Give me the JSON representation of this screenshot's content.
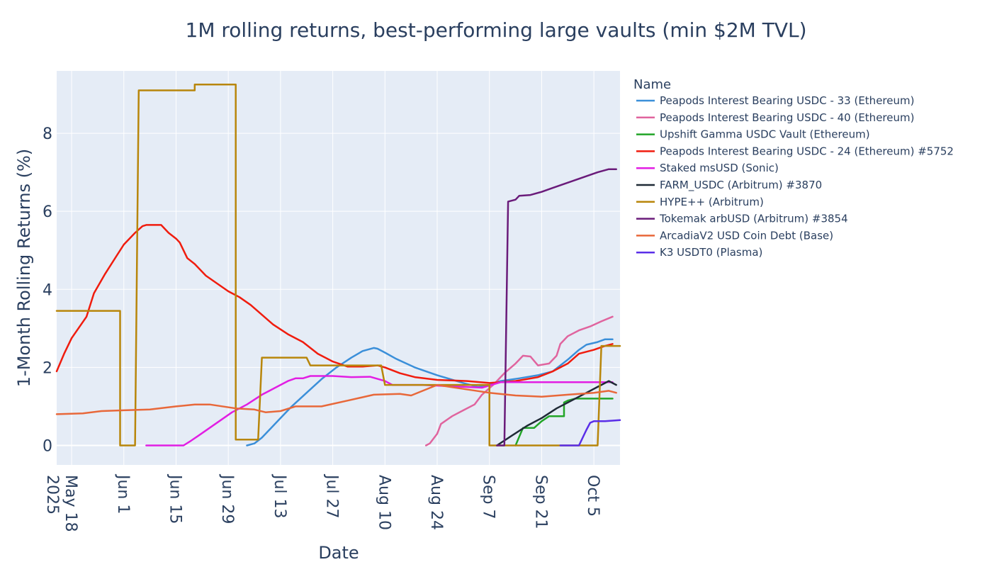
{
  "chart_data": {
    "type": "line",
    "title": "1M rolling returns, best-performing large vaults (min $2M TVL)",
    "xlabel": "Date",
    "ylabel": "1-Month Rolling Returns (%)",
    "x_range": [
      "2025-05-14",
      "2025-10-12"
    ],
    "ylim": [
      -0.5,
      9.6
    ],
    "y_ticks": [
      0,
      2,
      4,
      6,
      8
    ],
    "x_ticks": [
      {
        "date": "2025-05-18",
        "label": "May 18",
        "sublabel": "2025"
      },
      {
        "date": "2025-06-01",
        "label": "Jun 1",
        "sublabel": ""
      },
      {
        "date": "2025-06-15",
        "label": "Jun 15",
        "sublabel": ""
      },
      {
        "date": "2025-06-29",
        "label": "Jun 29",
        "sublabel": ""
      },
      {
        "date": "2025-07-13",
        "label": "Jul 13",
        "sublabel": ""
      },
      {
        "date": "2025-07-27",
        "label": "Jul 27",
        "sublabel": ""
      },
      {
        "date": "2025-08-10",
        "label": "Aug 10",
        "sublabel": ""
      },
      {
        "date": "2025-08-24",
        "label": "Aug 24",
        "sublabel": ""
      },
      {
        "date": "2025-09-07",
        "label": "Sep 7",
        "sublabel": ""
      },
      {
        "date": "2025-09-21",
        "label": "Sep 21",
        "sublabel": ""
      },
      {
        "date": "2025-10-05",
        "label": "Oct 5",
        "sublabel": ""
      }
    ],
    "grid": true,
    "legend_title": "Name",
    "legend_position": "right",
    "colors": {
      "plot_bg": "#e5ecf6",
      "grid": "#ffffff",
      "text": "#2a3f5f"
    },
    "series": [
      {
        "name": "Peapods Interest Bearing USDC - 33 (Ethereum)",
        "color": "#3b8fd9",
        "points": [
          [
            "2025-07-04",
            0.0
          ],
          [
            "2025-07-06",
            0.05
          ],
          [
            "2025-07-08",
            0.2
          ],
          [
            "2025-07-10",
            0.4
          ],
          [
            "2025-07-13",
            0.7
          ],
          [
            "2025-07-16",
            1.0
          ],
          [
            "2025-07-20",
            1.35
          ],
          [
            "2025-07-24",
            1.7
          ],
          [
            "2025-07-28",
            2.0
          ],
          [
            "2025-08-01",
            2.25
          ],
          [
            "2025-08-04",
            2.42
          ],
          [
            "2025-08-07",
            2.5
          ],
          [
            "2025-08-08",
            2.48
          ],
          [
            "2025-08-10",
            2.38
          ],
          [
            "2025-08-13",
            2.22
          ],
          [
            "2025-08-18",
            2.0
          ],
          [
            "2025-08-24",
            1.8
          ],
          [
            "2025-08-31",
            1.6
          ],
          [
            "2025-09-04",
            1.5
          ],
          [
            "2025-09-07",
            1.55
          ],
          [
            "2025-09-10",
            1.65
          ],
          [
            "2025-09-15",
            1.72
          ],
          [
            "2025-09-20",
            1.8
          ],
          [
            "2025-09-24",
            1.9
          ],
          [
            "2025-09-28",
            2.2
          ],
          [
            "2025-10-01",
            2.45
          ],
          [
            "2025-10-03",
            2.58
          ],
          [
            "2025-10-06",
            2.65
          ],
          [
            "2025-10-08",
            2.72
          ],
          [
            "2025-10-10",
            2.72
          ]
        ]
      },
      {
        "name": "Peapods Interest Bearing USDC - 40 (Ethereum)",
        "color": "#e0649e",
        "points": [
          [
            "2025-08-21",
            0.0
          ],
          [
            "2025-08-22",
            0.05
          ],
          [
            "2025-08-24",
            0.3
          ],
          [
            "2025-08-25",
            0.55
          ],
          [
            "2025-08-28",
            0.75
          ],
          [
            "2025-08-31",
            0.9
          ],
          [
            "2025-09-03",
            1.05
          ],
          [
            "2025-09-05",
            1.3
          ],
          [
            "2025-09-08",
            1.55
          ],
          [
            "2025-09-11",
            1.85
          ],
          [
            "2025-09-14",
            2.1
          ],
          [
            "2025-09-16",
            2.3
          ],
          [
            "2025-09-18",
            2.28
          ],
          [
            "2025-09-20",
            2.05
          ],
          [
            "2025-09-23",
            2.1
          ],
          [
            "2025-09-25",
            2.3
          ],
          [
            "2025-09-26",
            2.6
          ],
          [
            "2025-09-28",
            2.8
          ],
          [
            "2025-10-01",
            2.95
          ],
          [
            "2025-10-04",
            3.05
          ],
          [
            "2025-10-07",
            3.18
          ],
          [
            "2025-10-10",
            3.3
          ]
        ]
      },
      {
        "name": "Upshift Gamma USDC Vault (Ethereum)",
        "color": "#22a528",
        "points": [
          [
            "2025-09-14",
            0.0
          ],
          [
            "2025-09-16",
            0.45
          ],
          [
            "2025-09-19",
            0.45
          ],
          [
            "2025-09-21",
            0.62
          ],
          [
            "2025-09-23",
            0.75
          ],
          [
            "2025-09-27",
            0.75
          ],
          [
            "2025-09-27",
            1.1
          ],
          [
            "2025-09-28",
            1.15
          ],
          [
            "2025-09-30",
            1.2
          ],
          [
            "2025-10-10",
            1.2
          ]
        ]
      },
      {
        "name": "Peapods Interest Bearing USDC - 24 (Ethereum) #5752",
        "color": "#f01c0e",
        "points": [
          [
            "2025-05-14",
            1.9
          ],
          [
            "2025-05-16",
            2.35
          ],
          [
            "2025-05-18",
            2.75
          ],
          [
            "2025-05-22",
            3.3
          ],
          [
            "2025-05-24",
            3.9
          ],
          [
            "2025-05-27",
            4.4
          ],
          [
            "2025-05-30",
            4.85
          ],
          [
            "2025-06-01",
            5.15
          ],
          [
            "2025-06-04",
            5.45
          ],
          [
            "2025-06-06",
            5.62
          ],
          [
            "2025-06-07",
            5.65
          ],
          [
            "2025-06-11",
            5.65
          ],
          [
            "2025-06-13",
            5.45
          ],
          [
            "2025-06-15",
            5.3
          ],
          [
            "2025-06-16",
            5.2
          ],
          [
            "2025-06-18",
            4.8
          ],
          [
            "2025-06-20",
            4.65
          ],
          [
            "2025-06-23",
            4.35
          ],
          [
            "2025-06-26",
            4.15
          ],
          [
            "2025-06-29",
            3.95
          ],
          [
            "2025-07-02",
            3.8
          ],
          [
            "2025-07-05",
            3.6
          ],
          [
            "2025-07-08",
            3.35
          ],
          [
            "2025-07-11",
            3.1
          ],
          [
            "2025-07-15",
            2.85
          ],
          [
            "2025-07-19",
            2.65
          ],
          [
            "2025-07-23",
            2.35
          ],
          [
            "2025-07-27",
            2.15
          ],
          [
            "2025-07-31",
            2.02
          ],
          [
            "2025-08-04",
            2.02
          ],
          [
            "2025-08-08",
            2.05
          ],
          [
            "2025-08-10",
            2.0
          ],
          [
            "2025-08-14",
            1.85
          ],
          [
            "2025-08-18",
            1.75
          ],
          [
            "2025-08-24",
            1.68
          ],
          [
            "2025-09-01",
            1.65
          ],
          [
            "2025-09-07",
            1.6
          ],
          [
            "2025-09-14",
            1.65
          ],
          [
            "2025-09-20",
            1.75
          ],
          [
            "2025-09-24",
            1.9
          ],
          [
            "2025-09-28",
            2.1
          ],
          [
            "2025-10-01",
            2.35
          ],
          [
            "2025-10-05",
            2.45
          ],
          [
            "2025-10-08",
            2.55
          ],
          [
            "2025-10-10",
            2.6
          ]
        ]
      },
      {
        "name": "Staked msUSD (Sonic)",
        "color": "#e21ee3",
        "points": [
          [
            "2025-06-07",
            0.0
          ],
          [
            "2025-06-17",
            0.0
          ],
          [
            "2025-06-19",
            0.12
          ],
          [
            "2025-06-21",
            0.25
          ],
          [
            "2025-06-24",
            0.45
          ],
          [
            "2025-06-27",
            0.65
          ],
          [
            "2025-06-30",
            0.85
          ],
          [
            "2025-07-04",
            1.05
          ],
          [
            "2025-07-08",
            1.3
          ],
          [
            "2025-07-12",
            1.5
          ],
          [
            "2025-07-15",
            1.65
          ],
          [
            "2025-07-17",
            1.72
          ],
          [
            "2025-07-19",
            1.72
          ],
          [
            "2025-07-21",
            1.78
          ],
          [
            "2025-07-27",
            1.78
          ],
          [
            "2025-08-01",
            1.75
          ],
          [
            "2025-08-06",
            1.76
          ],
          [
            "2025-08-10",
            1.65
          ],
          [
            "2025-08-12",
            1.55
          ],
          [
            "2025-08-20",
            1.55
          ],
          [
            "2025-09-05",
            1.48
          ],
          [
            "2025-09-10",
            1.62
          ],
          [
            "2025-09-20",
            1.62
          ],
          [
            "2025-10-10",
            1.62
          ]
        ]
      },
      {
        "name": "FARM_USDC (Arbitrum) #3870",
        "color": "#1f2a36",
        "points": [
          [
            "2025-09-09",
            0.0
          ],
          [
            "2025-09-13",
            0.25
          ],
          [
            "2025-09-17",
            0.5
          ],
          [
            "2025-09-21",
            0.7
          ],
          [
            "2025-09-25",
            0.95
          ],
          [
            "2025-09-29",
            1.15
          ],
          [
            "2025-10-03",
            1.35
          ],
          [
            "2025-10-06",
            1.5
          ],
          [
            "2025-10-09",
            1.65
          ],
          [
            "2025-10-11",
            1.55
          ]
        ]
      },
      {
        "name": "HYPE++ (Arbitrum)",
        "color": "#b8860b",
        "points": [
          [
            "2025-05-14",
            3.45
          ],
          [
            "2025-05-31",
            3.45
          ],
          [
            "2025-05-31",
            0.0
          ],
          [
            "2025-06-04",
            0.0
          ],
          [
            "2025-06-05",
            9.1
          ],
          [
            "2025-06-20",
            9.1
          ],
          [
            "2025-06-20",
            9.25
          ],
          [
            "2025-07-01",
            9.25
          ],
          [
            "2025-07-01",
            0.15
          ],
          [
            "2025-07-07",
            0.15
          ],
          [
            "2025-07-08",
            2.25
          ],
          [
            "2025-07-20",
            2.25
          ],
          [
            "2025-07-21",
            2.05
          ],
          [
            "2025-08-09",
            2.05
          ],
          [
            "2025-08-10",
            1.55
          ],
          [
            "2025-09-07",
            1.55
          ],
          [
            "2025-09-07",
            0.0
          ],
          [
            "2025-10-06",
            0.0
          ],
          [
            "2025-10-07",
            2.55
          ],
          [
            "2025-10-12",
            2.55
          ]
        ]
      },
      {
        "name": "Tokemak arbUSD (Arbitrum) #3854",
        "color": "#6a1b7a",
        "points": [
          [
            "2025-09-09",
            0.0
          ],
          [
            "2025-09-11",
            0.0
          ],
          [
            "2025-09-12",
            6.25
          ],
          [
            "2025-09-14",
            6.3
          ],
          [
            "2025-09-15",
            6.4
          ],
          [
            "2025-09-18",
            6.42
          ],
          [
            "2025-09-21",
            6.5
          ],
          [
            "2025-09-24",
            6.6
          ],
          [
            "2025-09-27",
            6.7
          ],
          [
            "2025-09-30",
            6.8
          ],
          [
            "2025-10-03",
            6.9
          ],
          [
            "2025-10-06",
            7.0
          ],
          [
            "2025-10-09",
            7.08
          ],
          [
            "2025-10-11",
            7.08
          ]
        ]
      },
      {
        "name": "ArcadiaV2 USD Coin Debt (Base)",
        "color": "#e8683a",
        "points": [
          [
            "2025-05-14",
            0.8
          ],
          [
            "2025-05-21",
            0.82
          ],
          [
            "2025-05-26",
            0.88
          ],
          [
            "2025-06-01",
            0.9
          ],
          [
            "2025-06-08",
            0.92
          ],
          [
            "2025-06-15",
            1.0
          ],
          [
            "2025-06-20",
            1.05
          ],
          [
            "2025-06-24",
            1.05
          ],
          [
            "2025-07-01",
            0.95
          ],
          [
            "2025-07-06",
            0.92
          ],
          [
            "2025-07-09",
            0.85
          ],
          [
            "2025-07-13",
            0.88
          ],
          [
            "2025-07-17",
            1.0
          ],
          [
            "2025-07-24",
            1.0
          ],
          [
            "2025-07-31",
            1.15
          ],
          [
            "2025-08-07",
            1.3
          ],
          [
            "2025-08-14",
            1.32
          ],
          [
            "2025-08-17",
            1.28
          ],
          [
            "2025-08-24",
            1.55
          ],
          [
            "2025-08-31",
            1.45
          ],
          [
            "2025-09-07",
            1.35
          ],
          [
            "2025-09-14",
            1.28
          ],
          [
            "2025-09-21",
            1.25
          ],
          [
            "2025-09-28",
            1.3
          ],
          [
            "2025-10-05",
            1.35
          ],
          [
            "2025-10-09",
            1.4
          ],
          [
            "2025-10-11",
            1.35
          ]
        ]
      },
      {
        "name": "K3 USDT0 (Plasma)",
        "color": "#5a2ee8",
        "points": [
          [
            "2025-09-26",
            0.0
          ],
          [
            "2025-10-01",
            0.0
          ],
          [
            "2025-10-03",
            0.4
          ],
          [
            "2025-10-04",
            0.58
          ],
          [
            "2025-10-05",
            0.62
          ],
          [
            "2025-10-08",
            0.62
          ],
          [
            "2025-10-12",
            0.65
          ]
        ]
      }
    ]
  }
}
